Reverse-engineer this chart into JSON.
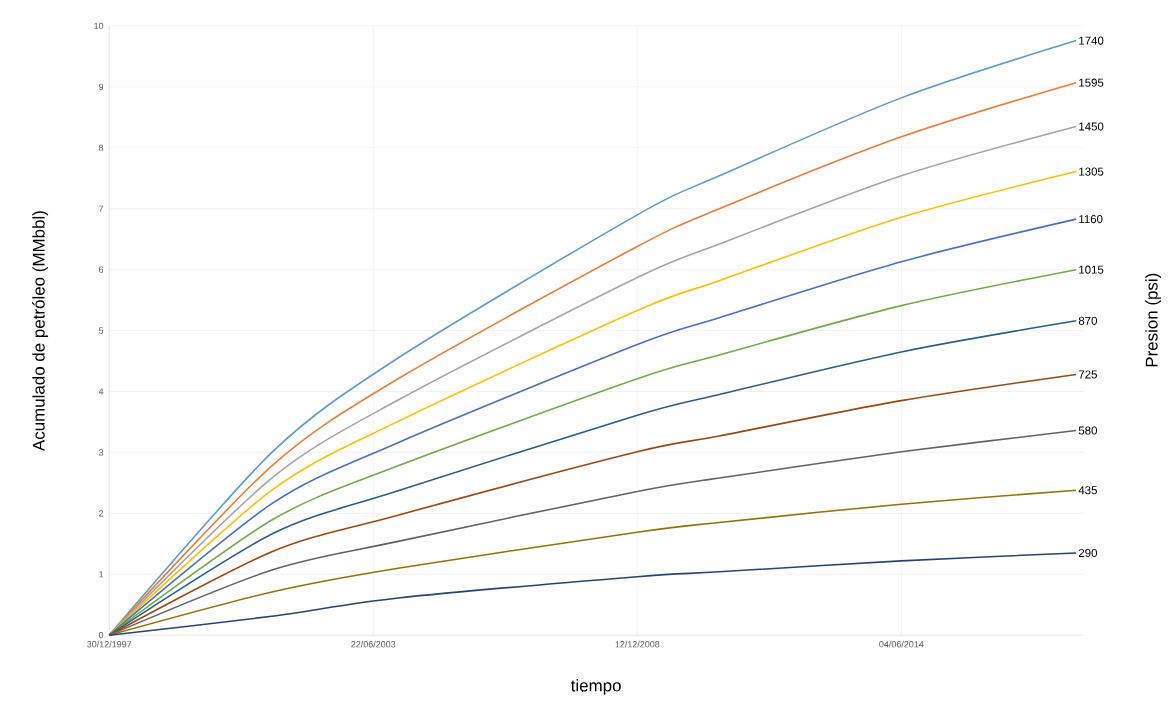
{
  "chart_data": {
    "type": "line",
    "xlabel": "tiempo",
    "ylabel": "Acumulado de petróleo (MMbbl)",
    "y2label": "Presion (psi)",
    "x": [
      "1997-12-30",
      "2001-05-15",
      "2003-12-27",
      "2008-12-12",
      "2010-08-25",
      "2014-06-04",
      "2018-01-18"
    ],
    "xlim": [
      "1997-12-30",
      "2018-03-11"
    ],
    "ylim": [
      0,
      10
    ],
    "xticks": [
      {
        "value": "1997-12-30",
        "label": "30/12/1997"
      },
      {
        "value": "2003-06-22",
        "label": "22/06/2003"
      },
      {
        "value": "2008-12-12",
        "label": "12/12/2008"
      },
      {
        "value": "2014-06-04",
        "label": "04/06/2014"
      }
    ],
    "yticks": [
      0,
      1,
      2,
      3,
      4,
      5,
      6,
      7,
      8,
      9,
      10
    ],
    "grid": true,
    "legend": false,
    "marker": "none",
    "line_style": "solid",
    "series": [
      {
        "name": "1740",
        "color": "#5b9bd5",
        "values": [
          0,
          3.0,
          4.55,
          6.9,
          7.54,
          8.82,
          9.76
        ]
      },
      {
        "name": "1595",
        "color": "#ed7d31",
        "values": [
          0,
          2.78,
          4.21,
          6.38,
          7.0,
          8.18,
          9.07
        ]
      },
      {
        "name": "1450",
        "color": "#a5a5a5",
        "values": [
          0,
          2.58,
          3.86,
          5.87,
          6.42,
          7.54,
          8.35
        ]
      },
      {
        "name": "1305",
        "color": "#ffc000",
        "values": [
          0,
          2.38,
          3.51,
          5.33,
          5.82,
          6.86,
          7.61
        ]
      },
      {
        "name": "1160",
        "color": "#4472c4",
        "values": [
          0,
          2.16,
          3.16,
          4.77,
          5.21,
          6.13,
          6.83
        ]
      },
      {
        "name": "1015",
        "color": "#70ad47",
        "values": [
          0,
          1.89,
          2.78,
          4.21,
          4.6,
          5.41,
          6.0
        ]
      },
      {
        "name": "870",
        "color": "#255e91",
        "values": [
          0,
          1.66,
          2.37,
          3.61,
          3.95,
          4.65,
          5.16
        ]
      },
      {
        "name": "725",
        "color": "#9e480e",
        "values": [
          0,
          1.37,
          1.97,
          3.01,
          3.27,
          3.85,
          4.28
        ]
      },
      {
        "name": "580",
        "color": "#636363",
        "values": [
          0,
          1.07,
          1.54,
          2.36,
          2.58,
          3.01,
          3.36
        ]
      },
      {
        "name": "435",
        "color": "#997300",
        "values": [
          0,
          0.71,
          1.1,
          1.69,
          1.85,
          2.15,
          2.38
        ]
      },
      {
        "name": "290",
        "color": "#264478",
        "values": [
          0,
          0.31,
          0.61,
          0.96,
          1.04,
          1.22,
          1.35
        ]
      }
    ]
  }
}
